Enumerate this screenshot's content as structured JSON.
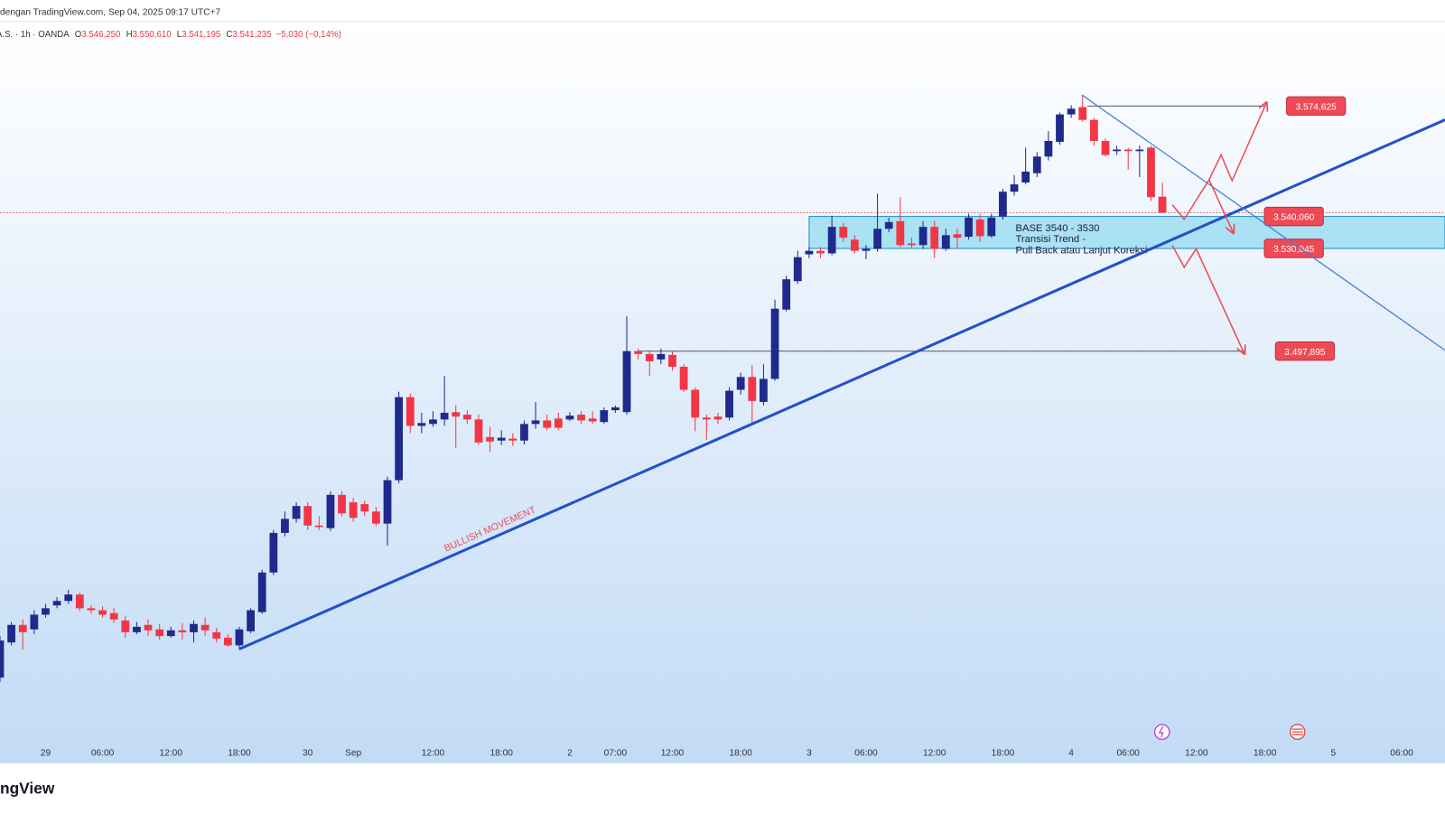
{
  "chart_data": {
    "type": "candlestick",
    "header": "dengan TradingView.com, Sep 04, 2025 09:17 UTC+7",
    "symbol": "A.S. · 1h · OANDA",
    "fields": [
      {
        "key": "O",
        "value": 3546.25,
        "label": "3.546,250"
      },
      {
        "key": "H",
        "value": 3550.61,
        "label": "3.550,610"
      },
      {
        "key": "L",
        "value": 3541.195,
        "label": "3.541,195"
      },
      {
        "key": "C",
        "value": 3541.235,
        "label": "3.541,235"
      }
    ],
    "change": "−5,030 (−0,14%)",
    "brand": "ngView",
    "up_color": "#1f2a8c",
    "down_color": "#f23645",
    "x": [
      0,
      1,
      2,
      3,
      4,
      5,
      6,
      7,
      8,
      9,
      10,
      11,
      12,
      13,
      14,
      15,
      16,
      17,
      18,
      19,
      20,
      21,
      22,
      23,
      24,
      25,
      26,
      27,
      28,
      29,
      30,
      31,
      32,
      33,
      34,
      35,
      36,
      37,
      38,
      39,
      40,
      41,
      42,
      43,
      44,
      45,
      46,
      47,
      48,
      49,
      50,
      51,
      52,
      53,
      54,
      55,
      56,
      57,
      58,
      59,
      60,
      61,
      62,
      63,
      64,
      65,
      66,
      67,
      68,
      69,
      70,
      71,
      72,
      73,
      74,
      75,
      76,
      77,
      78,
      79,
      80,
      81,
      82,
      83,
      84,
      85,
      86,
      87,
      88,
      89,
      90,
      91,
      92,
      93,
      94,
      95,
      96,
      97,
      98,
      99,
      100,
      101,
      102
    ],
    "open": [
      3395.7,
      3406.7,
      3412.2,
      3410.8,
      3415.4,
      3418.3,
      3419.7,
      3421.7,
      3417.4,
      3416.8,
      3415.9,
      3413.6,
      3409.9,
      3412.2,
      3410.8,
      3408.7,
      3410.5,
      3409.9,
      3412.2,
      3409.9,
      3408.2,
      3405.8,
      3410.2,
      3416.2,
      3428.6,
      3441.0,
      3445.4,
      3449.4,
      3443.3,
      3442.5,
      3452.9,
      3450.6,
      3450.0,
      3447.7,
      3443.9,
      3457.5,
      3483.5,
      3474.5,
      3475.1,
      3476.5,
      3478.8,
      3478.0,
      3476.5,
      3471.0,
      3469.9,
      3470.5,
      3469.9,
      3475.1,
      3476.2,
      3476.8,
      3476.5,
      3478.0,
      3476.8,
      3475.7,
      3479.4,
      3478.8,
      3497.9,
      3497.0,
      3495.3,
      3496.7,
      3493.0,
      3485.8,
      3477.1,
      3477.4,
      3477.1,
      3485.8,
      3489.8,
      3482.0,
      3489.2,
      3510.9,
      3519.8,
      3528.2,
      3529.3,
      3528.5,
      3536.8,
      3532.8,
      3529.3,
      3529.9,
      3536.2,
      3538.6,
      3531.6,
      3531.1,
      3536.8,
      3529.9,
      3534.5,
      3533.7,
      3539.1,
      3533.9,
      3540.0,
      3547.8,
      3550.7,
      3553.6,
      3558.8,
      3563.4,
      3572.0,
      3574.3,
      3570.3,
      3563.7,
      3560.5,
      3561.0,
      3560.5,
      3561.6,
      3546.25
    ],
    "high": [
      3408.7,
      3413.1,
      3413.9,
      3416.8,
      3418.8,
      3420.9,
      3423.2,
      3422.3,
      3418.3,
      3418.0,
      3417.4,
      3415.1,
      3413.1,
      3413.9,
      3412.5,
      3411.6,
      3412.8,
      3413.6,
      3414.5,
      3411.3,
      3409.3,
      3411.6,
      3417.4,
      3429.5,
      3441.9,
      3447.7,
      3450.6,
      3450.6,
      3446.2,
      3454.0,
      3454.0,
      3452.0,
      3451.1,
      3449.1,
      3458.6,
      3485.2,
      3484.6,
      3478.6,
      3479.1,
      3490.1,
      3480.9,
      3479.4,
      3478.0,
      3474.2,
      3473.1,
      3472.2,
      3476.2,
      3482.0,
      3478.0,
      3478.6,
      3478.8,
      3479.1,
      3479.1,
      3480.3,
      3480.9,
      3508.8,
      3498.7,
      3498.2,
      3498.7,
      3497.9,
      3493.8,
      3486.6,
      3478.0,
      3478.6,
      3486.6,
      3491.2,
      3493.6,
      3493.8,
      3514.0,
      3521.5,
      3529.3,
      3530.5,
      3530.5,
      3540.3,
      3538.0,
      3534.2,
      3531.1,
      3547.2,
      3539.7,
      3546.1,
      3533.4,
      3538.6,
      3538.6,
      3536.2,
      3536.2,
      3540.9,
      3540.9,
      3540.9,
      3548.7,
      3553.0,
      3561.6,
      3560.2,
      3566.8,
      3572.6,
      3574.9,
      3578.1,
      3570.9,
      3564.5,
      3562.2,
      3561.6,
      3562.2,
      3562.2,
      3550.61
    ],
    "low": [
      3394.3,
      3405.8,
      3404.4,
      3409.3,
      3414.5,
      3417.4,
      3418.8,
      3416.5,
      3415.7,
      3414.5,
      3412.8,
      3408.2,
      3409.3,
      3408.7,
      3407.6,
      3408.2,
      3407.6,
      3406.7,
      3408.7,
      3406.7,
      3405.3,
      3404.4,
      3409.6,
      3415.7,
      3427.8,
      3439.9,
      3444.2,
      3441.9,
      3441.9,
      3441.6,
      3446.2,
      3444.5,
      3446.2,
      3443.1,
      3437.0,
      3456.6,
      3472.2,
      3472.2,
      3474.2,
      3474.5,
      3467.6,
      3475.1,
      3468.5,
      3466.4,
      3468.5,
      3468.2,
      3468.7,
      3473.6,
      3473.1,
      3473.1,
      3476.0,
      3475.1,
      3475.1,
      3475.1,
      3478.6,
      3478.0,
      3495.3,
      3490.1,
      3493.8,
      3491.8,
      3485.2,
      3472.8,
      3470.2,
      3475.1,
      3476.2,
      3484.3,
      3475.1,
      3480.9,
      3488.6,
      3510.3,
      3518.9,
      3527.0,
      3527.0,
      3527.9,
      3532.2,
      3528.5,
      3526.7,
      3529.0,
      3535.1,
      3530.5,
      3529.9,
      3529.9,
      3527.0,
      3529.3,
      3529.9,
      3532.8,
      3532.2,
      3533.4,
      3539.1,
      3546.6,
      3550.1,
      3552.4,
      3557.6,
      3562.5,
      3570.9,
      3569.7,
      3562.2,
      3558.8,
      3559.3,
      3554.7,
      3552.4,
      3544.9,
      3541.195
    ],
    "close": [
      3407.3,
      3412.2,
      3409.9,
      3415.4,
      3417.4,
      3419.7,
      3421.7,
      3417.4,
      3416.8,
      3415.4,
      3413.9,
      3409.9,
      3411.6,
      3410.5,
      3408.7,
      3410.5,
      3409.9,
      3412.5,
      3410.5,
      3407.9,
      3405.8,
      3410.8,
      3416.8,
      3428.6,
      3441.0,
      3445.4,
      3449.4,
      3443.3,
      3442.8,
      3452.9,
      3447.1,
      3445.7,
      3447.7,
      3443.9,
      3457.5,
      3483.5,
      3474.5,
      3475.4,
      3476.5,
      3478.6,
      3477.4,
      3476.5,
      3469.3,
      3469.6,
      3470.8,
      3469.9,
      3475.1,
      3476.2,
      3473.9,
      3473.9,
      3477.7,
      3476.2,
      3475.9,
      3479.4,
      3480.3,
      3497.9,
      3497.0,
      3494.7,
      3497.0,
      3493.0,
      3485.8,
      3477.1,
      3476.5,
      3476.5,
      3485.5,
      3489.8,
      3482.3,
      3489.2,
      3511.2,
      3520.4,
      3527.3,
      3529.3,
      3528.5,
      3536.8,
      3533.4,
      3529.3,
      3529.9,
      3536.2,
      3538.3,
      3531.1,
      3531.1,
      3536.8,
      3529.9,
      3534.2,
      3533.4,
      3539.7,
      3533.9,
      3539.7,
      3547.8,
      3550.1,
      3554.1,
      3558.8,
      3563.7,
      3572.0,
      3573.8,
      3570.3,
      3563.7,
      3559.3,
      3561.0,
      3560.5,
      3561.0,
      3546.1,
      3541.235
    ],
    "xlim": [
      0,
      126.8
    ],
    "ylim": [
      3368.9,
      3600.6
    ],
    "xticks": [
      {
        "value": 4,
        "label": "29"
      },
      {
        "value": 9,
        "label": "06:00"
      },
      {
        "value": 15,
        "label": "12:00"
      },
      {
        "value": 21,
        "label": "18:00"
      },
      {
        "value": 27,
        "label": "30"
      },
      {
        "value": 31,
        "label": "Sep"
      },
      {
        "value": 38,
        "label": "12:00"
      },
      {
        "value": 44,
        "label": "18:00"
      },
      {
        "value": 50,
        "label": "2"
      },
      {
        "value": 54,
        "label": "07:00"
      },
      {
        "value": 59,
        "label": "12:00"
      },
      {
        "value": 65,
        "label": "18:00"
      },
      {
        "value": 71,
        "label": "3"
      },
      {
        "value": 76,
        "label": "06:00"
      },
      {
        "value": 82,
        "label": "12:00"
      },
      {
        "value": 88,
        "label": "18:00"
      },
      {
        "value": 94,
        "label": "4"
      },
      {
        "value": 99,
        "label": "06:00"
      },
      {
        "value": 105,
        "label": "12:00"
      },
      {
        "value": 111,
        "label": "18:00"
      },
      {
        "value": 117,
        "label": "5"
      },
      {
        "value": 123,
        "label": "06:00"
      }
    ],
    "levels": [
      {
        "value": 3574.625,
        "label": "3.574,625"
      },
      {
        "value": 3540.06,
        "label": "3.540,060"
      },
      {
        "value": 3530.045,
        "label": "3.530,045"
      },
      {
        "value": 3497.895,
        "label": "3.497,895"
      }
    ],
    "zone_text": [
      "BASE 3540 - 3530",
      "Transisi Trend -",
      "Pull Back atau Lanjut Koreksi"
    ],
    "trend_label": "BULLISH MOVEMENT"
  }
}
